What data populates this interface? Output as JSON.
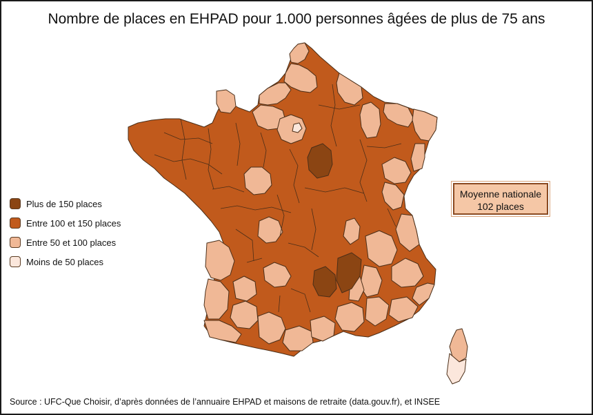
{
  "title": "Nombre de places en EHPAD pour 1.000 personnes âgées de plus de 75 ans",
  "colors": {
    "plus_150": "#8b4513",
    "entre_100_150": "#c15a1c",
    "entre_50_100": "#f0b896",
    "moins_50": "#fbe7dc",
    "border": "#4a2e18"
  },
  "legend": [
    {
      "label": "Plus de 150 places",
      "color": "#8b4513"
    },
    {
      "label": "Entre 100 et 150 places",
      "color": "#c15a1c"
    },
    {
      "label": "Entre 50 et 100 places",
      "color": "#f0b896"
    },
    {
      "label": "Moins de 50 places",
      "color": "#fbe7dc"
    }
  ],
  "average_box": {
    "line1": "Moyenne nationale",
    "line2": "102 places"
  },
  "source": "Source : UFC-Que Choisir, d’après données de l’annuaire EHPAD et maisons de retraite (data.gouv.fr), et INSEE"
}
